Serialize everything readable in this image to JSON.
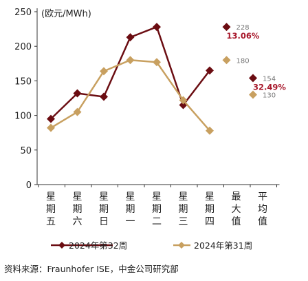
{
  "chart_data": {
    "type": "line",
    "unit_label": "(欧元/MWh)",
    "categories": [
      "星期五",
      "星期六",
      "星期日",
      "星期一",
      "星期二",
      "星期三",
      "星期四"
    ],
    "extra_categories": [
      "最大值",
      "平均值"
    ],
    "y_ticks": [
      "0",
      "50",
      "100",
      "150",
      "200",
      "250"
    ],
    "ylim": [
      0,
      250
    ],
    "series": [
      {
        "name": "2024年第32周",
        "color": "#6b0d12",
        "values": [
          95,
          132,
          127,
          213,
          228,
          115,
          165
        ]
      },
      {
        "name": "2024年第31周",
        "color": "#c8a060",
        "values": [
          82,
          105,
          164,
          180,
          177,
          122,
          78
        ]
      }
    ],
    "markers": [
      {
        "series": 0,
        "category": "最大值",
        "value": 228,
        "label": "228",
        "pct": "13.06%"
      },
      {
        "series": 1,
        "category": "最大值",
        "value": 180,
        "label": "180"
      },
      {
        "series": 0,
        "category": "平均值",
        "value": 154,
        "label": "154",
        "pct": "32.49%"
      },
      {
        "series": 1,
        "category": "平均值",
        "value": 130,
        "label": "130"
      }
    ],
    "pct_color": "#a8182b",
    "label_color": "#777777",
    "grid": false,
    "legend_position": "bottom"
  },
  "source_text": "资料来源：Fraunhofer ISE，中金公司研究部"
}
